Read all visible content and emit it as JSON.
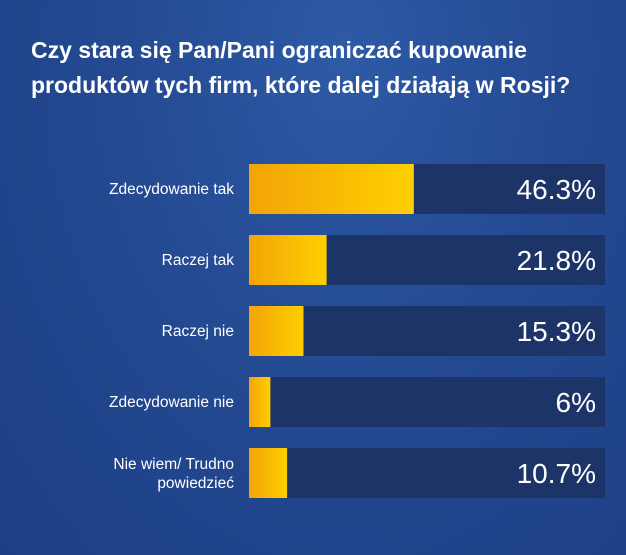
{
  "colors": {
    "track": "#1c3467",
    "bar_start": "#f3a407",
    "bar_end": "#ffcf00",
    "text": "#ffffff"
  },
  "chart_data": {
    "type": "bar",
    "orientation": "horizontal",
    "title": "Czy stara się Pan/Pani ograniczać kupowanie produktów tych firm, które dalej działają w Rosji?",
    "categories": [
      "Zdecydowanie tak",
      "Raczej tak",
      "Raczej nie",
      "Zdecydowanie nie",
      "Nie wiem/ Trudno powiedzieć"
    ],
    "values": [
      46.3,
      21.8,
      15.3,
      6,
      10.7
    ],
    "value_labels": [
      "46.3%",
      "21.8%",
      "15.3%",
      "6%",
      "10.7%"
    ],
    "xlim": [
      0,
      100
    ],
    "unit": "%",
    "grid": false,
    "legend": "none"
  }
}
